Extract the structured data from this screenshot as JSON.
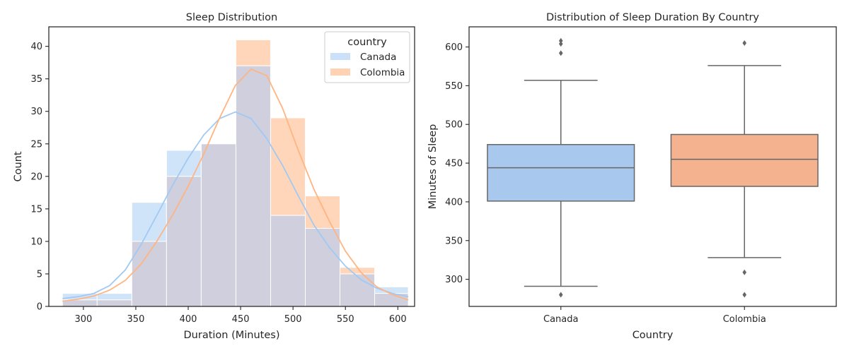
{
  "colors": {
    "canada_fill": "#a1c9f4",
    "colombia_fill": "#ffb482",
    "overlap_fill": "#cfcfdd",
    "box_canada": "#a9c8ee",
    "box_colombia": "#f5b28e",
    "box_line": "#666666",
    "axis": "#262626"
  },
  "chart_data": [
    {
      "type": "histogram",
      "title": "Sleep Distribution",
      "xlabel": "Duration (Minutes)",
      "ylabel": "Count",
      "xlim": [
        267,
        616
      ],
      "ylim": [
        0,
        43
      ],
      "xticks": [
        300,
        350,
        400,
        450,
        500,
        550,
        600
      ],
      "yticks": [
        0,
        5,
        10,
        15,
        20,
        25,
        30,
        35,
        40
      ],
      "legend": {
        "title": "country",
        "position": "upper right"
      },
      "bin_edges": [
        280,
        313.1,
        346.2,
        379.3,
        412.4,
        445.5,
        478.6,
        511.7,
        544.8,
        577.9,
        610
      ],
      "series": [
        {
          "name": "Canada",
          "values": [
            2,
            2,
            16,
            24,
            25,
            37,
            14,
            12,
            5,
            3
          ],
          "kde_x": [
            280,
            295,
            310,
            325,
            340,
            355,
            370,
            385,
            400,
            415,
            430,
            445,
            460,
            475,
            490,
            505,
            520,
            535,
            550,
            565,
            580,
            595,
            610
          ],
          "kde_y": [
            1.2,
            1.5,
            2.0,
            3.2,
            5.6,
            9.5,
            14.0,
            18.6,
            22.8,
            26.4,
            28.9,
            29.9,
            28.9,
            25.8,
            21.7,
            17.0,
            12.5,
            9.0,
            6.2,
            4.1,
            2.8,
            2.0,
            1.5
          ]
        },
        {
          "name": "Colombia",
          "values": [
            1,
            1,
            10,
            20,
            25,
            41,
            29,
            17,
            6,
            2
          ],
          "kde_x": [
            280,
            295,
            310,
            325,
            340,
            355,
            370,
            385,
            400,
            415,
            430,
            445,
            460,
            475,
            490,
            505,
            520,
            535,
            550,
            565,
            580,
            595,
            610
          ],
          "kde_y": [
            0.8,
            1.1,
            1.6,
            2.5,
            4.0,
            6.5,
            10.0,
            14.0,
            18.5,
            23.5,
            29.0,
            34.0,
            36.5,
            35.5,
            30.5,
            24.0,
            18.0,
            13.0,
            8.5,
            5.2,
            3.0,
            1.8,
            1.0
          ]
        }
      ]
    },
    {
      "type": "box",
      "title": "Distribution of Sleep Duration By Country",
      "xlabel": "Country",
      "ylabel": "Minutes of Sleep",
      "categories": [
        "Canada",
        "Colombia"
      ],
      "ylim": [
        265,
        626
      ],
      "yticks": [
        300,
        350,
        400,
        450,
        500,
        550,
        600
      ],
      "series": [
        {
          "name": "Canada",
          "whisker_low": 291,
          "q1": 401,
          "median": 444,
          "q3": 474,
          "whisker_high": 557,
          "outliers": [
            280,
            592,
            604,
            608
          ]
        },
        {
          "name": "Colombia",
          "whisker_low": 328,
          "q1": 420,
          "median": 455,
          "q3": 487,
          "whisker_high": 576,
          "outliers": [
            280,
            309,
            605
          ]
        }
      ]
    }
  ]
}
